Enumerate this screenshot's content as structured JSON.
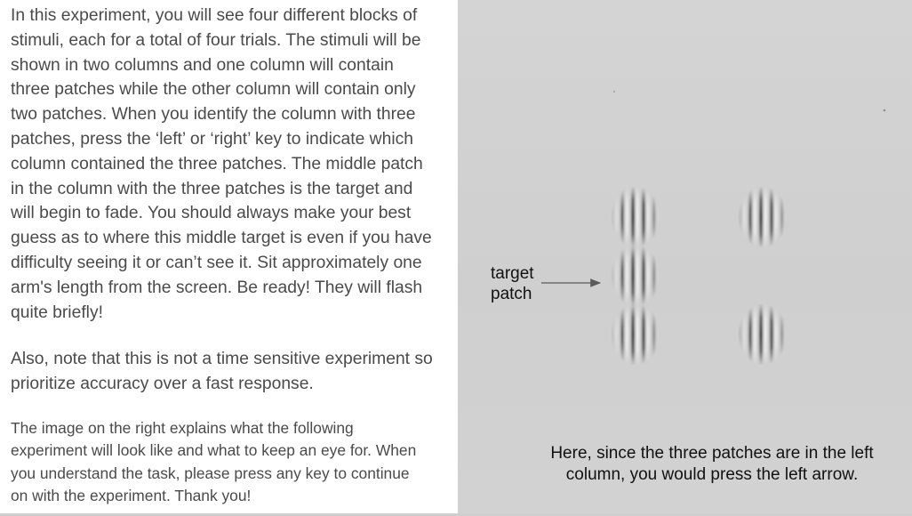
{
  "instructions": {
    "main_text": "In this experiment, you will see four different blocks of\nstimuli, each for a total of four trials. The stimuli will be\nshown in two columns and one column will contain\nthree patches while the other column will contain only\ntwo patches. When you identify the column with three\npatches, press the ‘left’ or ‘right’ key to indicate which\ncolumn contained the three patches. The middle patch\nin the column with the three patches is the target and\nwill begin to fade. You should always make your best\nguess as to where this middle target is even if you have\ndifficulty seeing it or can’t see it. Sit approximately one\narm's length from the screen. Be ready!  They will flash\nquite briefly!",
    "note_text": "Also, note that this is not a time sensitive experiment so\nprioritize accuracy over a fast response.",
    "image_explanation_text": "The image on the right explains what the following\nexperiment will look like and what to keep an eye for. When\nyou understand the task, please press any key to continue\non with the experiment. Thank you!"
  },
  "example_image": {
    "target_label": "target\npatch",
    "caption": "Here, since the three patches are in the left\ncolumn, you would press the left arrow.",
    "left_column_patch_count": 3,
    "right_column_patch_count": 2
  }
}
